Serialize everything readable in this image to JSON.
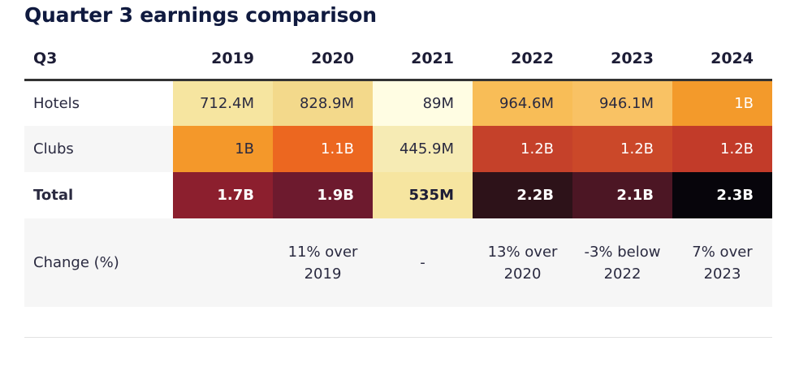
{
  "title": "Quarter 3 earnings comparison",
  "chart_data": {
    "type": "table",
    "title": "Quarter 3 earnings comparison",
    "columns": [
      "Q3",
      "2019",
      "2020",
      "2021",
      "2022",
      "2023",
      "2024"
    ],
    "rows": [
      {
        "label": "Hotels",
        "values": [
          "712.4M",
          "828.9M",
          "89M",
          "964.6M",
          "946.1M",
          "1B"
        ],
        "colors": [
          "#f6e5a0",
          "#f3d98b",
          "#fffde3",
          "#f8bd57",
          "#f9c264",
          "#f39a2b"
        ],
        "text_colors": [
          "#2a2a40",
          "#2a2a40",
          "#2a2a40",
          "#2a2a40",
          "#2a2a40",
          "#ffffff"
        ]
      },
      {
        "label": "Clubs",
        "values": [
          "1B",
          "1.1B",
          "445.9M",
          "1.2B",
          "1.2B",
          "1.2B"
        ],
        "colors": [
          "#f4982a",
          "#ec6720",
          "#f6ebb4",
          "#c5412a",
          "#cb4829",
          "#c23b29"
        ],
        "text_colors": [
          "#2a2a40",
          "#ffffff",
          "#2a2a40",
          "#ffffff",
          "#ffffff",
          "#ffffff"
        ]
      },
      {
        "label": "Total",
        "values": [
          "1.7B",
          "1.9B",
          "535M",
          "2.2B",
          "2.1B",
          "2.3B"
        ],
        "colors": [
          "#8c1f2e",
          "#6d1a2e",
          "#f6e5a0",
          "#2d1219",
          "#4c1624",
          "#07050b"
        ],
        "text_colors": [
          "#ffffff",
          "#ffffff",
          "#1d1d36",
          "#ffffff",
          "#ffffff",
          "#ffffff"
        ]
      },
      {
        "label": "Change (%)",
        "values": [
          "",
          "11% over 2019",
          "-",
          "13% over 2020",
          "-3% below 2022",
          "7% over 2023"
        ],
        "colors": [
          "#f6f6f6",
          "#f6f6f6",
          "#f6f6f6",
          "#f6f6f6",
          "#f6f6f6",
          "#f6f6f6"
        ],
        "text_colors": [
          "#2a2a40",
          "#2a2a40",
          "#2a2a40",
          "#2a2a40",
          "#2a2a40",
          "#2a2a40"
        ]
      }
    ]
  }
}
